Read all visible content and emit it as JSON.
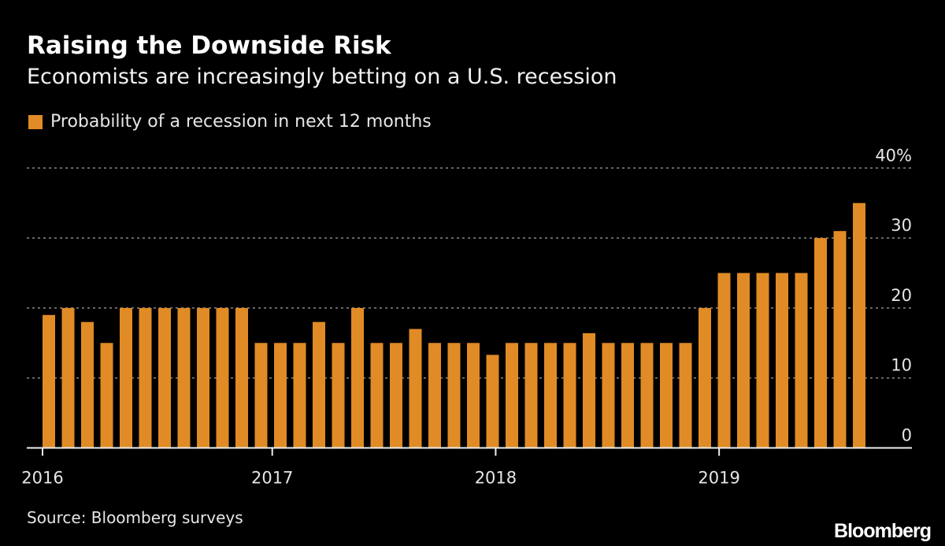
{
  "chart_data": {
    "type": "bar",
    "title": "Raising the Downside Risk",
    "subtitle": "Economists are increasingly betting on a U.S. recession",
    "source": "Source: Bloomberg surveys",
    "brand": "Bloomberg",
    "series": [
      {
        "name": "Probability of a recession in next 12 months",
        "color": "#e08b25",
        "values": [
          19,
          20,
          18,
          15,
          20,
          20,
          20,
          20,
          20,
          20,
          20,
          15,
          15,
          15,
          18,
          15,
          20,
          15,
          15,
          17,
          15,
          15,
          15,
          13.3,
          15,
          15,
          15,
          15,
          16.4,
          15,
          15,
          15,
          15,
          15,
          20,
          25,
          25,
          25,
          25,
          25,
          30,
          31,
          35
        ]
      }
    ],
    "x_start": "2016-01",
    "x_end": "2019-07",
    "x_interval": "monthly",
    "xticks": [
      "2016",
      "2017",
      "2018",
      "2019"
    ],
    "yticks": [
      "0",
      "10",
      "20",
      "30",
      "40%"
    ],
    "ylim": [
      0,
      40
    ],
    "grid": true,
    "legend_position": "top-left",
    "y_axis_side": "right"
  }
}
